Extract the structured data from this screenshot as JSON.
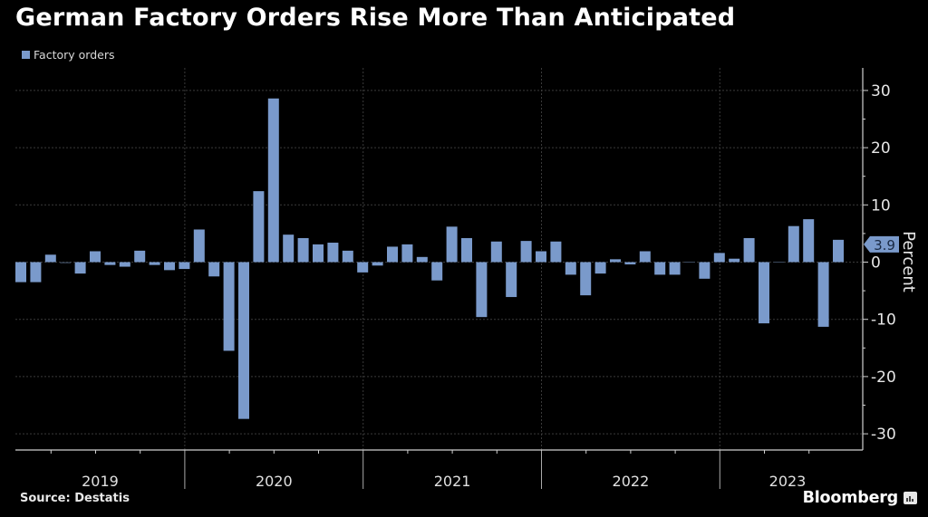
{
  "header": {
    "title": "German Factory Orders Rise More Than Anticipated"
  },
  "footer": {
    "source": "Source:  Destatis",
    "brand": "Bloomberg",
    "brand_icon": "bar-chart-icon"
  },
  "colors": {
    "background": "#000000",
    "bar": "#7a9acb",
    "grid": "#3a3a3a",
    "axis": "#d0d0d0",
    "label_text": "#1a2a44"
  },
  "chart_data": {
    "type": "bar",
    "title": "German Factory Orders Rise More Than Anticipated",
    "legend": [
      "Factory orders"
    ],
    "legend_position": "top-left",
    "xlabel": "",
    "ylabel": "Percent",
    "ylim": [
      -32,
      33
    ],
    "yticks": [
      30,
      20,
      10,
      0,
      -10,
      -20,
      -30
    ],
    "ytick_labels": [
      "30",
      "20",
      "10",
      "0",
      "-10",
      "-20",
      "-30"
    ],
    "y_axis_side": "right",
    "grid": true,
    "x_year_labels": [
      "2019",
      "2020",
      "2021",
      "2022",
      "2023"
    ],
    "categories": [
      "Jan 2019",
      "Feb 2019",
      "Mar 2019",
      "Apr 2019",
      "May 2019",
      "Jun 2019",
      "Jul 2019",
      "Aug 2019",
      "Sep 2019",
      "Oct 2019",
      "Nov 2019",
      "Dec 2019",
      "Jan 2020",
      "Feb 2020",
      "Mar 2020",
      "Apr 2020",
      "May 2020",
      "Jun 2020",
      "Jul 2020",
      "Aug 2020",
      "Sep 2020",
      "Oct 2020",
      "Nov 2020",
      "Dec 2020",
      "Jan 2021",
      "Feb 2021",
      "Mar 2021",
      "Apr 2021",
      "May 2021",
      "Jun 2021",
      "Jul 2021",
      "Aug 2021",
      "Sep 2021",
      "Oct 2021",
      "Nov 2021",
      "Dec 2021",
      "Jan 2022",
      "Feb 2022",
      "Mar 2022",
      "Apr 2022",
      "May 2022",
      "Jun 2022",
      "Jul 2022",
      "Aug 2022",
      "Sep 2022",
      "Oct 2022",
      "Nov 2022",
      "Dec 2022",
      "Jan 2023",
      "Feb 2023",
      "Mar 2023",
      "Apr 2023",
      "May 2023",
      "Jun 2023",
      "Jul 2023",
      "Aug 2023"
    ],
    "series": [
      {
        "name": "Factory orders",
        "values": [
          -3.5,
          -3.5,
          1.3,
          -0.2,
          -2.0,
          1.9,
          -0.5,
          -0.8,
          2.0,
          -0.5,
          -1.4,
          -1.2,
          5.7,
          -2.5,
          -15.5,
          -27.4,
          12.4,
          28.6,
          4.8,
          4.2,
          3.1,
          3.4,
          2.0,
          -1.8,
          -0.6,
          2.7,
          3.1,
          0.9,
          -3.2,
          6.2,
          4.2,
          -9.6,
          3.6,
          -6.1,
          3.7,
          1.9,
          3.6,
          -2.2,
          -5.8,
          -2.0,
          0.5,
          -0.4,
          1.9,
          -2.2,
          -2.2,
          -0.1,
          -2.9,
          1.6,
          0.6,
          4.2,
          -10.7,
          0.1,
          6.3,
          7.5,
          -11.3,
          3.9
        ]
      }
    ],
    "annotations": [
      {
        "text": "3.9",
        "type": "last-value-label",
        "category": "Aug 2023",
        "value": 3.9
      }
    ]
  }
}
